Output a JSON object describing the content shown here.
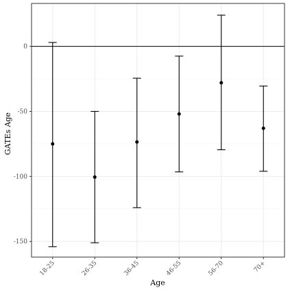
{
  "chart_data": {
    "type": "errorbar",
    "title": "",
    "xlabel": "Age",
    "ylabel": "GATEs Age",
    "categories": [
      "18-25",
      "26-35",
      "36-45",
      "46-55",
      "56-70",
      "70+"
    ],
    "estimates": [
      -75,
      -100.5,
      -73.5,
      -52,
      -28,
      -63
    ],
    "lower": [
      -154,
      -151,
      -124,
      -96.5,
      -79.5,
      -96
    ],
    "upper": [
      3,
      -50,
      -24.5,
      -7.5,
      24,
      -30.5
    ],
    "ylim": [
      -162,
      33
    ],
    "yticks": [
      0,
      -50,
      -100,
      -150
    ],
    "reference_line": 0,
    "grid": true,
    "colors": {
      "marks": "#000000",
      "grid_major": "#ebebeb",
      "grid_minor": "#f5f5f5",
      "panel_border": "#333333"
    }
  }
}
